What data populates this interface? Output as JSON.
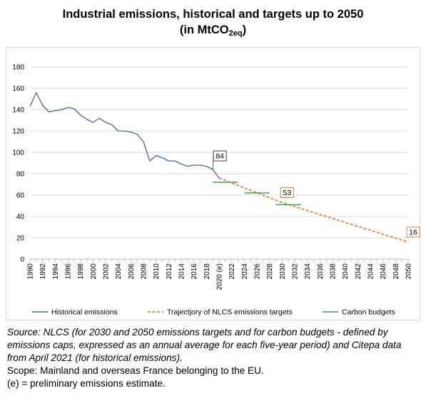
{
  "title": {
    "line1": "Industrial emissions, historical and targets up to 2050",
    "line2_prefix": "(in MtCO",
    "line2_sub": "2eq",
    "line2_suffix": ")"
  },
  "chart_data": {
    "type": "line",
    "ylim": [
      0,
      180
    ],
    "yticks": [
      0,
      20,
      40,
      60,
      80,
      100,
      120,
      140,
      160,
      180
    ],
    "grid": true,
    "legend_position": "bottom",
    "x_tick_labels": [
      "1990",
      "1992",
      "1994",
      "1996",
      "1998",
      "2000",
      "2002",
      "2004",
      "2006",
      "2008",
      "2010",
      "2012",
      "2014",
      "2016",
      "2018",
      "2020 (e)",
      "2022",
      "2024",
      "2026",
      "2028",
      "2030",
      "2032",
      "2034",
      "2036",
      "2038",
      "2040",
      "2042",
      "2044",
      "2046",
      "2048",
      "2050"
    ],
    "series": [
      {
        "name": "Historical emissions",
        "style": "solid",
        "color": "#44688f",
        "x": [
          1990,
          1991,
          1992,
          1993,
          1994,
          1995,
          1996,
          1997,
          1998,
          1999,
          2000,
          2001,
          2002,
          2003,
          2004,
          2005,
          2006,
          2007,
          2008,
          2009,
          2010,
          2011,
          2012,
          2013,
          2014,
          2015,
          2016,
          2017,
          2018,
          2019,
          2020
        ],
        "values": [
          143,
          156,
          144,
          138,
          139,
          140,
          142,
          141,
          135,
          131,
          128,
          132,
          128,
          126,
          120,
          120,
          119,
          117,
          110,
          92,
          97,
          95,
          92,
          92,
          89,
          87,
          88,
          88,
          87,
          84,
          76
        ]
      },
      {
        "name": "Trajectjory of NLCS emissions targets",
        "style": "dashed",
        "color": "#ed7d31",
        "x": [
          2020,
          2030,
          2050
        ],
        "values": [
          76,
          53,
          16
        ]
      },
      {
        "name": "Carbon budgets",
        "style": "segments",
        "color": "#3aa35b",
        "segments": [
          {
            "x0": 2019,
            "x1": 2023,
            "value": 72
          },
          {
            "x0": 2024,
            "x1": 2028,
            "value": 62
          },
          {
            "x0": 2029,
            "x1": 2033,
            "value": 51
          }
        ]
      }
    ],
    "annotations": [
      {
        "text": "84",
        "x": 2019,
        "value": 84,
        "border": "#404040"
      },
      {
        "text": "53",
        "x": 2030,
        "value": 53,
        "border": "#ed7d31"
      },
      {
        "text": "16",
        "x": 2050,
        "value": 16,
        "border": "#ed7d31"
      }
    ]
  },
  "source": {
    "text": "Source: NLCS (for 2030 and 2050 emissions targets and for carbon budgets - defined by emissions caps, expressed as an annual average for each five-year period) and Citepa data from April 2021 (for historical emissions).",
    "scope": "Scope: Mainland and overseas France belonging to the EU.",
    "note": "(e) = preliminary emissions estimate."
  }
}
